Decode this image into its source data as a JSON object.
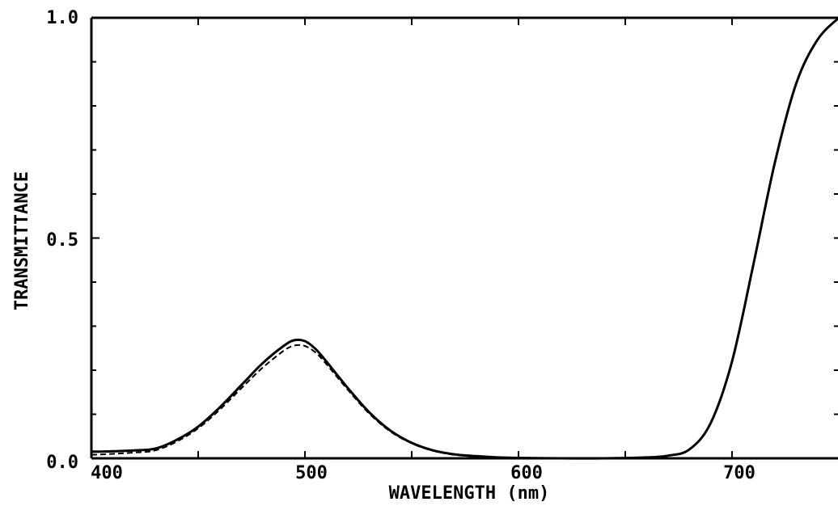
{
  "chart_data": {
    "type": "line",
    "xlabel": "WAVELENGTH (nm)",
    "ylabel": "TRANSMITTANCE",
    "xlim": [
      400,
      750
    ],
    "ylim": [
      0.0,
      1.0
    ],
    "x_ticks": [
      400,
      500,
      600,
      700
    ],
    "x_tick_labels": [
      "400",
      "500",
      "600",
      "700"
    ],
    "y_ticks": [
      0.0,
      0.5,
      1.0
    ],
    "y_tick_labels": [
      "0.0",
      "0.5",
      "1.0"
    ],
    "grid": false,
    "series": [
      {
        "style": "solid",
        "x": [
          400,
          410,
          420,
          430,
          440,
          450,
          460,
          470,
          480,
          490,
          495,
          500,
          505,
          510,
          520,
          530,
          540,
          550,
          560,
          570,
          580,
          590,
          600,
          620,
          640,
          660,
          670,
          680,
          690,
          700,
          710,
          720,
          730,
          740,
          750
        ],
        "y": [
          0.015,
          0.016,
          0.018,
          0.022,
          0.042,
          0.072,
          0.115,
          0.165,
          0.215,
          0.255,
          0.268,
          0.266,
          0.248,
          0.22,
          0.16,
          0.105,
          0.063,
          0.035,
          0.018,
          0.009,
          0.005,
          0.002,
          0.001,
          0.0,
          0.0,
          0.002,
          0.006,
          0.02,
          0.08,
          0.22,
          0.44,
          0.67,
          0.85,
          0.95,
          1.0
        ]
      },
      {
        "style": "dashed",
        "x": [
          400,
          410,
          420,
          430,
          440,
          450,
          460,
          470,
          480,
          490,
          495,
          500,
          505,
          510,
          520,
          530,
          540,
          550,
          560,
          570,
          580,
          590,
          600,
          620,
          640,
          660,
          670,
          680,
          690,
          700,
          710,
          720,
          730,
          740,
          750
        ],
        "y": [
          0.008,
          0.01,
          0.013,
          0.018,
          0.038,
          0.068,
          0.11,
          0.158,
          0.205,
          0.244,
          0.256,
          0.255,
          0.24,
          0.214,
          0.156,
          0.102,
          0.061,
          0.034,
          0.017,
          0.008,
          0.004,
          0.002,
          0.001,
          0.0,
          0.0,
          0.002,
          0.006,
          0.02,
          0.08,
          0.22,
          0.44,
          0.67,
          0.85,
          0.95,
          1.0
        ]
      }
    ]
  }
}
